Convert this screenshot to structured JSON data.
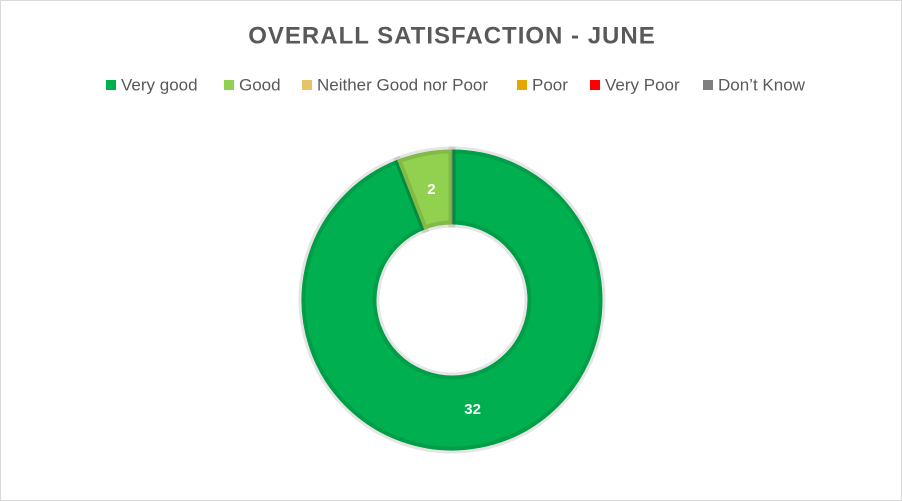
{
  "chart_data": {
    "type": "donut",
    "title": "OVERALL SATISFACTION - JUNE",
    "categories": [
      "Very good",
      "Good",
      "Neither Good nor Poor",
      "Poor",
      "Very Poor",
      "Don’t Know"
    ],
    "values": [
      32,
      2,
      0,
      0,
      0,
      0
    ],
    "colors": [
      "#00b050",
      "#92d050",
      "#e8c266",
      "#e6a800",
      "#ff0000",
      "#7f7f7f"
    ],
    "legend": "top"
  }
}
